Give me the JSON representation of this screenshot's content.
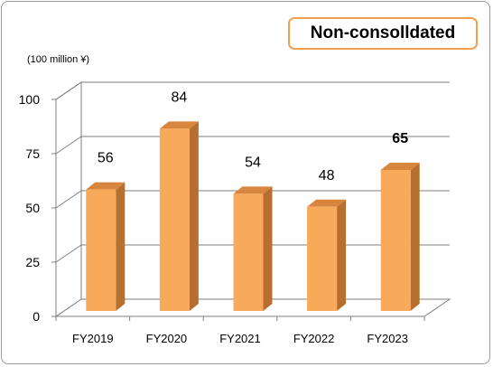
{
  "badge": {
    "label": "Non-consolldated"
  },
  "chart_data": {
    "type": "bar",
    "title": "",
    "xlabel": "",
    "ylabel": "(100 million ¥)",
    "categories": [
      "FY2019",
      "FY2020",
      "FY2021",
      "FY2022",
      "FY2023"
    ],
    "values": [
      56,
      84,
      54,
      48,
      65
    ],
    "data_labels": [
      "56",
      "84",
      "54",
      "48",
      "65"
    ],
    "ylim": [
      0,
      100
    ],
    "yticks": [
      0,
      25,
      50,
      75,
      100
    ],
    "grid": true,
    "legend": "none",
    "colors": {
      "bar_front": "#f9a95a",
      "bar_side": "#b86e2e",
      "bar_top": "#d8863e",
      "highlight_label": "#ee2a2a",
      "badge_border": "#f0a050"
    },
    "highlight_index": 4
  }
}
